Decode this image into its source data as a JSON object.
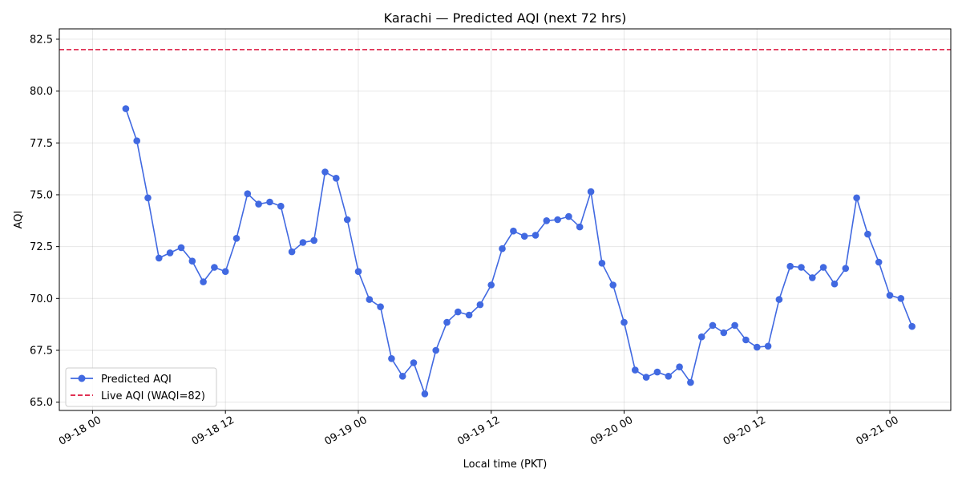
{
  "chart_data": {
    "type": "line",
    "title": "Karachi — Predicted AQI (next 72 hrs)",
    "xlabel": "Local time (PKT)",
    "ylabel": "AQI",
    "x_ticks": [
      "09-18 00",
      "09-18 12",
      "09-19 00",
      "09-19 12",
      "09-20 00",
      "09-20 12",
      "09-21 00"
    ],
    "y_ticks": [
      "65.0",
      "67.5",
      "70.0",
      "72.5",
      "75.0",
      "77.5",
      "80.0",
      "82.5"
    ],
    "ylim": [
      64.6,
      83.0
    ],
    "xlim": [
      "09-18 00:00 − 3h",
      "09-21 00:00 + 5.5h"
    ],
    "x_unit": "hours",
    "x_start": "09-18 03:00",
    "x_step_hours": 1,
    "grid": true,
    "legend_placement": "lower-left",
    "series": [
      {
        "name": "Predicted AQI",
        "color": "#4169e1",
        "marker": "circle",
        "values": [
          79.15,
          77.6,
          74.85,
          71.95,
          72.2,
          72.45,
          71.8,
          70.8,
          71.5,
          71.3,
          72.9,
          75.05,
          74.55,
          74.65,
          74.45,
          72.25,
          72.7,
          72.8,
          76.1,
          75.8,
          73.8,
          71.3,
          69.95,
          69.6,
          67.1,
          66.25,
          66.9,
          65.4,
          67.5,
          68.85,
          69.35,
          69.2,
          69.7,
          70.65,
          72.4,
          73.25,
          73.0,
          73.05,
          73.75,
          73.8,
          73.95,
          73.45,
          75.15,
          71.7,
          70.65,
          68.85,
          66.55,
          66.2,
          66.45,
          66.25,
          66.7,
          65.95,
          68.15,
          68.7,
          68.35,
          68.7,
          68.0,
          67.65,
          67.7,
          69.95,
          71.55,
          71.5,
          71.0,
          71.5,
          70.7,
          71.45,
          74.85,
          73.1,
          71.75,
          70.15,
          70.0,
          68.65
        ]
      },
      {
        "name": "Live AQI (WAQI=82)",
        "color": "#dc143c",
        "style": "dashed",
        "constant": 82
      }
    ]
  }
}
